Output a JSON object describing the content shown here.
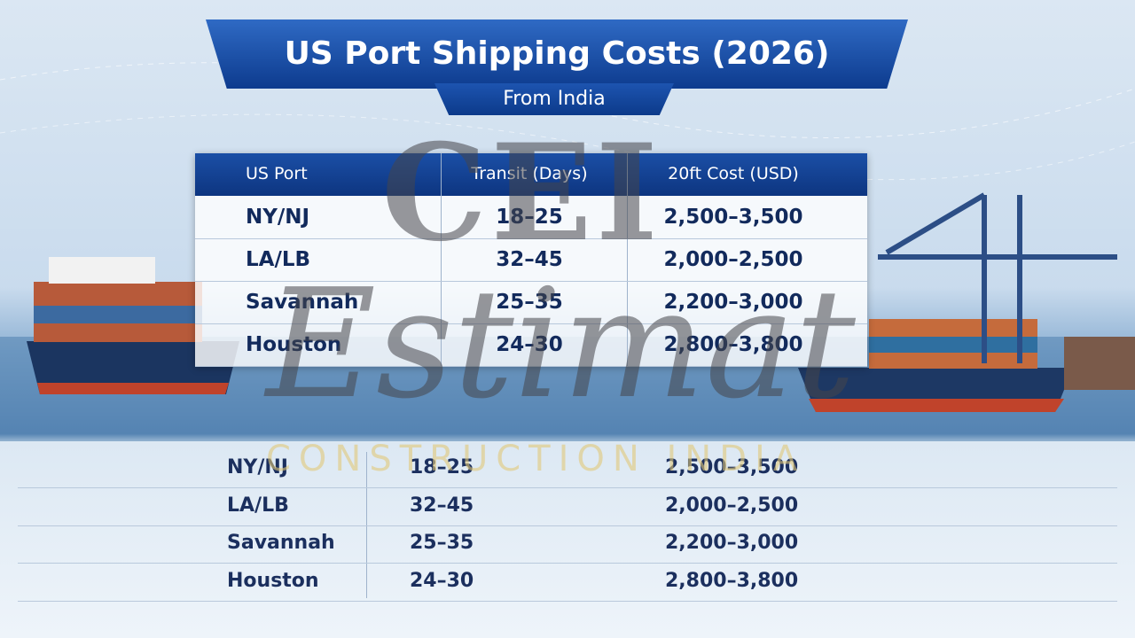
{
  "header": {
    "title": "US Port Shipping Costs (2026)",
    "subtitle": "From India"
  },
  "table": {
    "columns": [
      "US Port",
      "Transit (Days)",
      "20ft Cost (USD)"
    ],
    "rows": [
      [
        "NY/NJ",
        "18–25",
        "2,500–3,500"
      ],
      [
        "LA/LB",
        "32–45",
        "2,000–2,500"
      ],
      [
        "Savannah",
        "25–35",
        "2,200–3,000"
      ],
      [
        "Houston",
        "24–30",
        "2,800–3,800"
      ]
    ]
  },
  "lower_table": {
    "rows": [
      [
        "NY/NJ",
        "18–25",
        "2,500–3,500"
      ],
      [
        "LA/LB",
        "32–45",
        "2,000–2,500"
      ],
      [
        "Savannah",
        "25–35",
        "2,200–3,000"
      ],
      [
        "Houston",
        "24–30",
        "2,800–3,800"
      ]
    ]
  },
  "watermark": {
    "logo": "CEI",
    "brand": "Estimat",
    "tagline": "CONSTRUCTION INDIA"
  }
}
